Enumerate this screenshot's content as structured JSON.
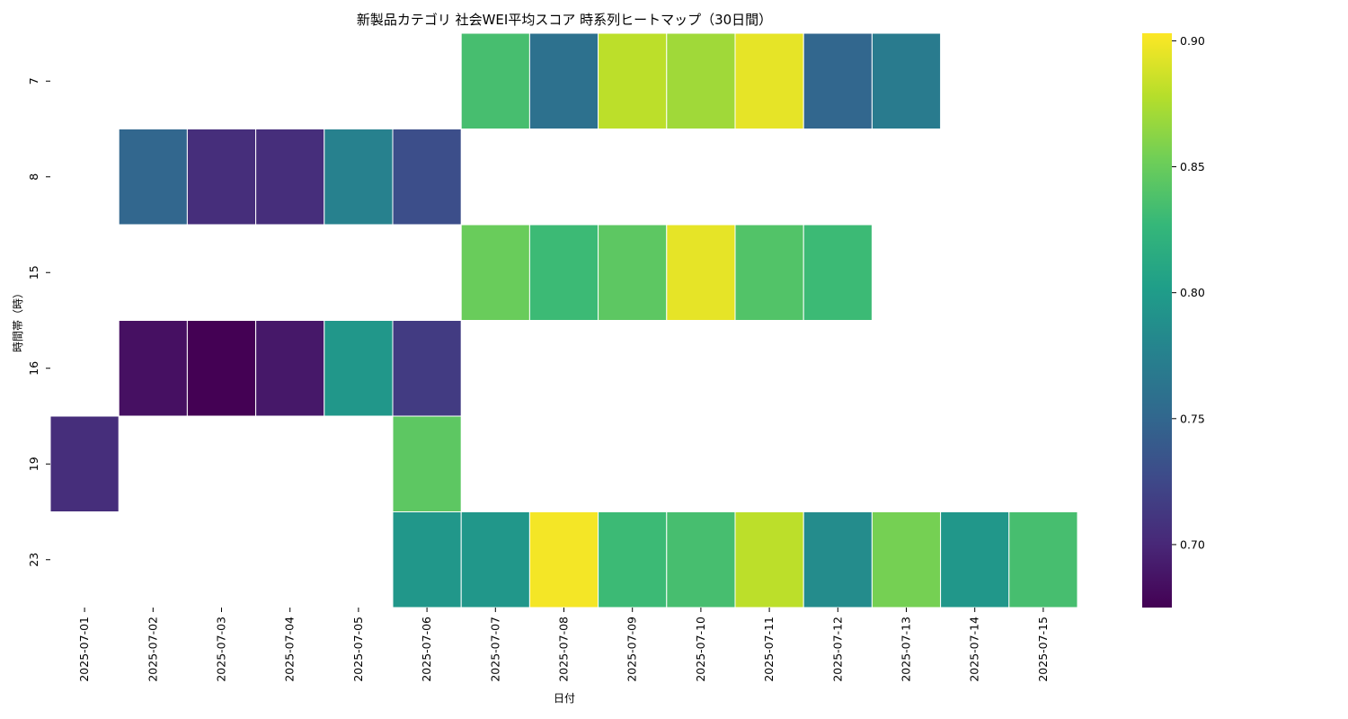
{
  "chart_data": {
    "type": "heatmap",
    "title": "新製品カテゴリ 社会WEI平均スコア 時系列ヒートマップ（30日間）",
    "xlabel": "日付",
    "ylabel": "時間帯（時）",
    "x": [
      "2025-07-01",
      "2025-07-02",
      "2025-07-03",
      "2025-07-04",
      "2025-07-05",
      "2025-07-06",
      "2025-07-07",
      "2025-07-08",
      "2025-07-09",
      "2025-07-10",
      "2025-07-11",
      "2025-07-12",
      "2025-07-13",
      "2025-07-14",
      "2025-07-15"
    ],
    "y": [
      "7",
      "8",
      "15",
      "16",
      "19",
      "23"
    ],
    "values": [
      [
        null,
        null,
        null,
        null,
        null,
        null,
        0.835,
        0.76,
        0.88,
        0.87,
        0.895,
        0.75,
        0.77,
        null,
        null
      ],
      [
        null,
        0.75,
        0.705,
        0.705,
        0.775,
        0.73,
        null,
        null,
        null,
        null,
        null,
        null,
        null,
        null,
        null
      ],
      [
        null,
        null,
        null,
        null,
        null,
        null,
        0.85,
        0.83,
        0.845,
        0.895,
        0.84,
        0.83,
        null,
        null,
        null
      ],
      [
        null,
        0.685,
        0.675,
        0.69,
        0.795,
        0.715,
        null,
        null,
        null,
        null,
        null,
        null,
        null,
        null,
        null
      ],
      [
        0.705,
        null,
        null,
        null,
        null,
        0.845,
        null,
        null,
        null,
        null,
        null,
        null,
        null,
        null,
        null
      ],
      [
        null,
        null,
        null,
        null,
        null,
        0.795,
        0.795,
        0.9,
        0.83,
        0.835,
        0.88,
        0.785,
        0.855,
        0.795,
        0.835
      ]
    ],
    "colorbar": {
      "colormap": "viridis",
      "vmin": 0.675,
      "vmax": 0.903,
      "ticks": [
        "0.70",
        "0.75",
        "0.80",
        "0.85",
        "0.90"
      ]
    }
  }
}
